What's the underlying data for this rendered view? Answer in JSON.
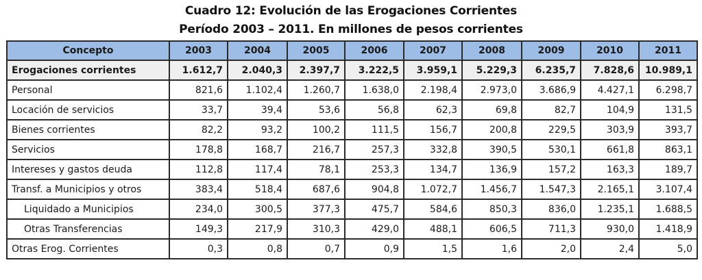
{
  "title_line1": "Cuadro 12: Evolución de las Erogaciones Corrientes",
  "title_line2": "Período 2003 – 2011. En millones de pesos corrientes",
  "colors": {
    "header_bg": "#9dbde6",
    "total_row_bg": "#efefef"
  },
  "table": {
    "columns": [
      "Concepto",
      "2003",
      "2004",
      "2005",
      "2006",
      "2007",
      "2008",
      "2009",
      "2010",
      "2011"
    ],
    "rows": [
      {
        "label": "Erogaciones corrientes",
        "style": "total",
        "values": [
          "1.612,7",
          "2.040,3",
          "2.397,7",
          "3.222,5",
          "3.959,1",
          "5.229,3",
          "6.235,7",
          "7.828,6",
          "10.989,1"
        ]
      },
      {
        "label": "Personal",
        "style": "normal",
        "values": [
          "821,6",
          "1.102,4",
          "1.260,7",
          "1.638,0",
          "2.198,4",
          "2.973,0",
          "3.686,9",
          "4.427,1",
          "6.298,7"
        ]
      },
      {
        "label": "Locación de servicios",
        "style": "normal",
        "values": [
          "33,7",
          "39,4",
          "53,6",
          "56,8",
          "62,3",
          "69,8",
          "82,7",
          "104,9",
          "131,5"
        ]
      },
      {
        "label": "Bienes corrientes",
        "style": "normal",
        "values": [
          "82,2",
          "93,2",
          "100,2",
          "111,5",
          "156,7",
          "200,8",
          "229,5",
          "303,9",
          "393,7"
        ]
      },
      {
        "label": "Servicios",
        "style": "normal",
        "values": [
          "178,8",
          "168,7",
          "216,7",
          "257,3",
          "332,8",
          "390,5",
          "530,1",
          "661,8",
          "863,1"
        ]
      },
      {
        "label": "Intereses y gastos deuda",
        "style": "normal",
        "values": [
          "112,8",
          "117,4",
          "78,1",
          "253,3",
          "134,7",
          "136,9",
          "157,2",
          "163,3",
          "189,7"
        ]
      },
      {
        "label": "Transf. a Municipios y otros",
        "style": "normal",
        "values": [
          "383,4",
          "518,4",
          "687,6",
          "904,8",
          "1.072,7",
          "1.456,7",
          "1.547,3",
          "2.165,1",
          "3.107,4"
        ]
      },
      {
        "label": "Liquidado a Municipios",
        "style": "indent",
        "values": [
          "234,0",
          "300,5",
          "377,3",
          "475,7",
          "584,6",
          "850,3",
          "836,0",
          "1.235,1",
          "1.688,5"
        ]
      },
      {
        "label": "Otras Transferencias",
        "style": "indent",
        "values": [
          "149,3",
          "217,9",
          "310,3",
          "429,0",
          "488,1",
          "606,5",
          "711,3",
          "930,0",
          "1.418,9"
        ]
      },
      {
        "label": "Otras Erog. Corrientes",
        "style": "normal",
        "values": [
          "0,3",
          "0,8",
          "0,7",
          "0,9",
          "1,5",
          "1,6",
          "2,0",
          "2,4",
          "5,0"
        ]
      }
    ]
  }
}
